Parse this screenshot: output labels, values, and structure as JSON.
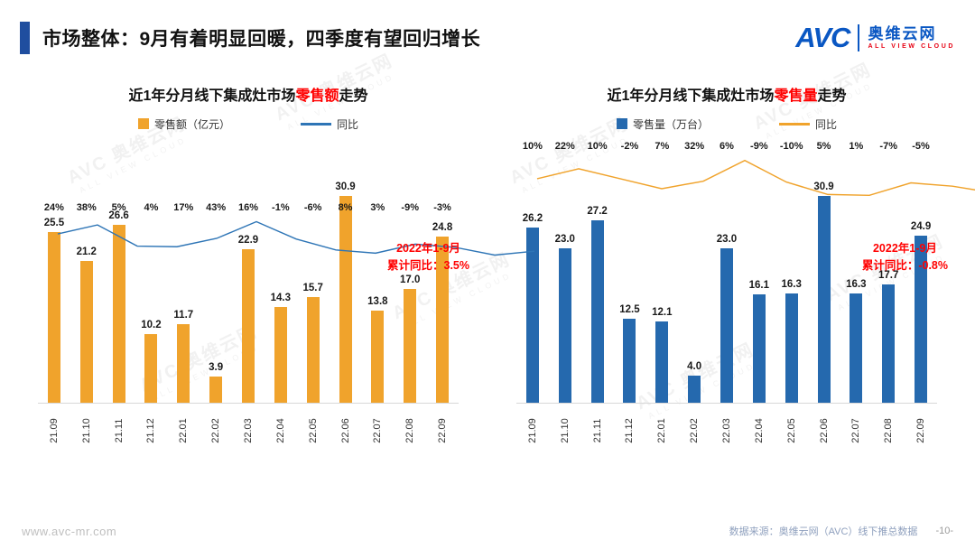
{
  "header": {
    "title": "市场整体：9月有着明显回暖，四季度有望回归增长"
  },
  "logo": {
    "mark": "AVC",
    "name": "奥维云网",
    "tagline": "ALL VIEW CLOUD"
  },
  "watermark": {
    "text": "AVC 奥维云网",
    "sub": "ALL VIEW CLOUD"
  },
  "footer": {
    "url": "www.avc-mr.com",
    "source": "数据来源：奥维云网（AVC）线下推总数据",
    "page": "-10-"
  },
  "chart_data": [
    {
      "type": "bar",
      "overlay_type": "line",
      "title_prefix": "近1年分月线下集成灶市场",
      "title_highlight": "零售额",
      "title_suffix": "走势",
      "legend_bar": "零售额（亿元）",
      "legend_line": "同比",
      "categories": [
        "21.09",
        "21.10",
        "21.11",
        "21.12",
        "22.01",
        "22.02",
        "22.03",
        "22.04",
        "22.05",
        "22.06",
        "22.07",
        "22.08",
        "22.09"
      ],
      "bar_values": [
        25.5,
        21.2,
        26.6,
        10.2,
        11.7,
        3.9,
        22.9,
        14.3,
        15.7,
        30.9,
        13.8,
        17.0,
        24.8
      ],
      "yoy_labels": [
        "24%",
        "38%",
        "5%",
        "4%",
        "17%",
        "43%",
        "16%",
        "-1%",
        "-6%",
        "8%",
        "3%",
        "-9%",
        "-3%"
      ],
      "annotation_line1": "2022年1-9月",
      "annotation_line2": "累计同比：3.5%",
      "bar_color": "#F0A32C",
      "line_color": "#2E75B6",
      "ylim": [
        0,
        33
      ],
      "legend_position": "top",
      "grid": false
    },
    {
      "type": "bar",
      "overlay_type": "line",
      "title_prefix": "近1年分月线下集成灶市场",
      "title_highlight": "零售量",
      "title_suffix": "走势",
      "legend_bar": "零售量（万台）",
      "legend_line": "同比",
      "categories": [
        "21.09",
        "21.10",
        "21.11",
        "21.12",
        "22.01",
        "22.02",
        "22.03",
        "22.04",
        "22.05",
        "22.06",
        "22.07",
        "22.08",
        "22.09"
      ],
      "bar_values": [
        26.2,
        23.0,
        27.2,
        12.5,
        12.1,
        4.0,
        23.0,
        16.1,
        16.3,
        30.9,
        16.3,
        17.7,
        24.9
      ],
      "yoy_labels": [
        "10%",
        "22%",
        "10%",
        "-2%",
        "7%",
        "32%",
        "6%",
        "-9%",
        "-10%",
        "5%",
        "1%",
        "-7%",
        "-5%"
      ],
      "annotation_line1": "2022年1-9月",
      "annotation_line2": "累计同比：-0.8%",
      "bar_color": "#2569AE",
      "line_color": "#F0A32C",
      "ylim": [
        0,
        33
      ],
      "legend_position": "top",
      "grid": false
    }
  ]
}
